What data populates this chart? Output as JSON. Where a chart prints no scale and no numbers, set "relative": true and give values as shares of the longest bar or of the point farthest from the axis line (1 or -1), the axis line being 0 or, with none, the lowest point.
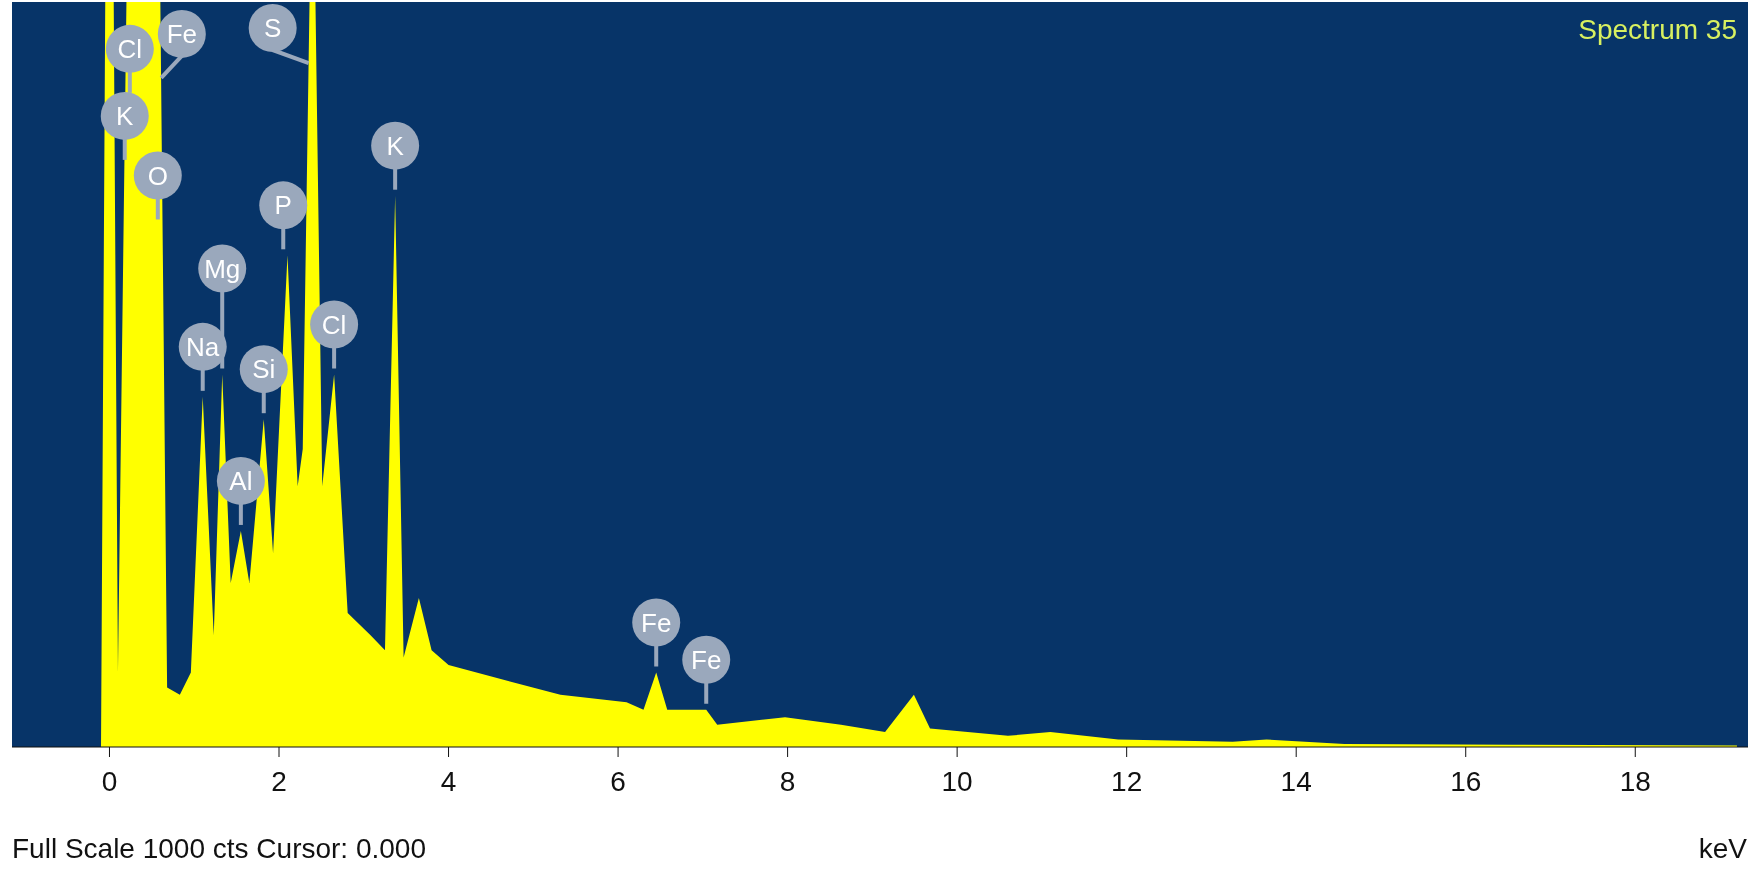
{
  "chart_data": {
    "type": "area",
    "title": "Spectrum 35",
    "xlabel": "keV",
    "relative": true,
    "xlim": [
      -1.15,
      19.33
    ],
    "xticks": [
      0,
      2,
      4,
      6,
      8,
      10,
      12,
      14,
      16,
      18
    ],
    "x": [
      -1.15,
      -0.1,
      -0.05,
      0.05,
      0.1,
      0.2,
      0.3,
      0.45,
      0.6,
      0.68,
      0.83,
      0.96,
      1.1,
      1.23,
      1.33,
      1.43,
      1.55,
      1.65,
      1.82,
      1.93,
      2.1,
      2.22,
      2.28,
      2.36,
      2.43,
      2.51,
      2.65,
      2.81,
      3.08,
      3.25,
      3.37,
      3.47,
      3.65,
      3.8,
      4.0,
      4.66,
      5.32,
      6.1,
      6.3,
      6.45,
      6.58,
      7.04,
      7.17,
      7.97,
      8.63,
      9.15,
      9.49,
      9.68,
      10.6,
      11.1,
      11.9,
      13.25,
      13.65,
      14.57,
      16.55,
      19.2
    ],
    "series": [
      {
        "color": "#ffff00",
        "values": [
          0,
          0,
          1,
          1,
          0.1,
          1,
          1,
          1,
          1,
          0.08,
          0.07,
          0.1,
          0.47,
          0.15,
          0.5,
          0.22,
          0.29,
          0.22,
          0.44,
          0.26,
          0.66,
          0.35,
          0.4,
          1,
          1,
          0.35,
          0.5,
          0.18,
          0.15,
          0.13,
          0.74,
          0.12,
          0.2,
          0.13,
          0.11,
          0.09,
          0.07,
          0.06,
          0.05,
          0.1,
          0.05,
          0.05,
          0.03,
          0.04,
          0.03,
          0.02,
          0.07,
          0.025,
          0.015,
          0.02,
          0.01,
          0.007,
          0.01,
          0.004,
          0.003,
          0.002
        ]
      }
    ],
    "annotations": [
      {
        "text": "Fe",
        "x": 0.61,
        "y": 0.89
      },
      {
        "text": "Cl",
        "x": 0.24,
        "y": 0.87
      },
      {
        "text": "K",
        "x": 0.18,
        "y": 0.78
      },
      {
        "text": "O",
        "x": 0.57,
        "y": 0.7
      },
      {
        "text": "S",
        "x": 2.35,
        "y": 0.91
      },
      {
        "text": "K",
        "x": 3.37,
        "y": 0.74
      },
      {
        "text": "P",
        "x": 2.05,
        "y": 0.66
      },
      {
        "text": "Mg",
        "x": 1.33,
        "y": 0.5
      },
      {
        "text": "Na",
        "x": 1.1,
        "y": 0.47
      },
      {
        "text": "Si",
        "x": 1.82,
        "y": 0.44
      },
      {
        "text": "Al",
        "x": 1.55,
        "y": 0.29
      },
      {
        "text": "Cl",
        "x": 2.65,
        "y": 0.5
      },
      {
        "text": "Fe",
        "x": 6.45,
        "y": 0.1
      },
      {
        "text": "Fe",
        "x": 7.04,
        "y": 0.05
      },
      "Full Scale 1000 cts Cursor: 0.000"
    ]
  }
}
